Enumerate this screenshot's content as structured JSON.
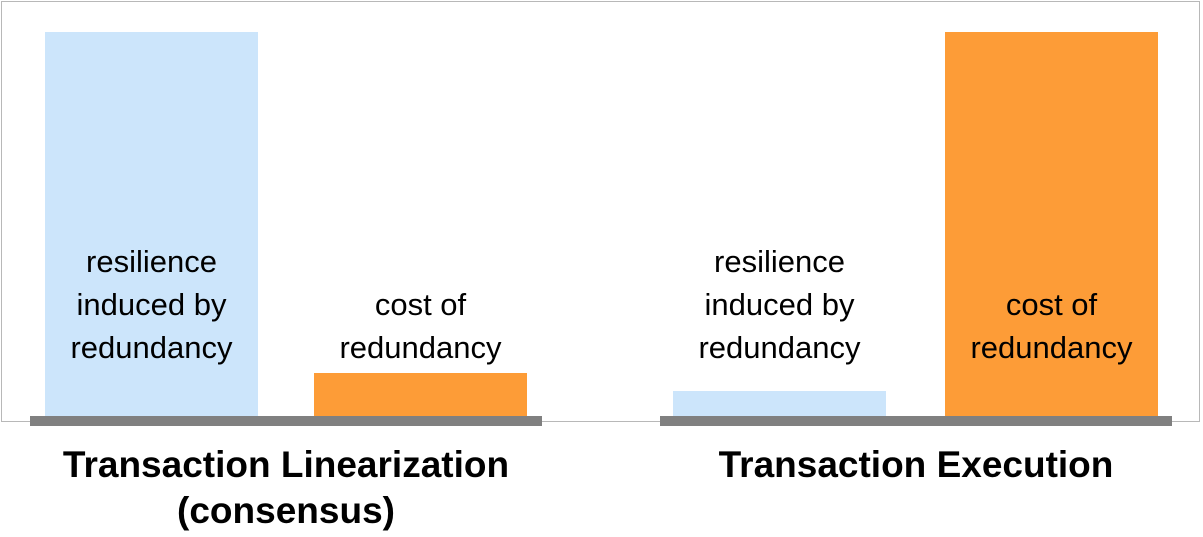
{
  "colors": {
    "resilience": "#cce5fb",
    "cost": "#fd9c37",
    "baseline": "#808080",
    "frame": "#b8b8b8"
  },
  "groups": [
    {
      "title": "Transaction Linearization\n(consensus)",
      "resilience_label": "resilience\ninduced by\nredundancy",
      "cost_label": "cost of\nredundancy",
      "resilience_level": "high",
      "cost_level": "low"
    },
    {
      "title": "Transaction Execution",
      "resilience_label": "resilience\ninduced by\nredundancy",
      "cost_label": "cost of\nredundancy",
      "resilience_level": "low",
      "cost_level": "high"
    }
  ]
}
